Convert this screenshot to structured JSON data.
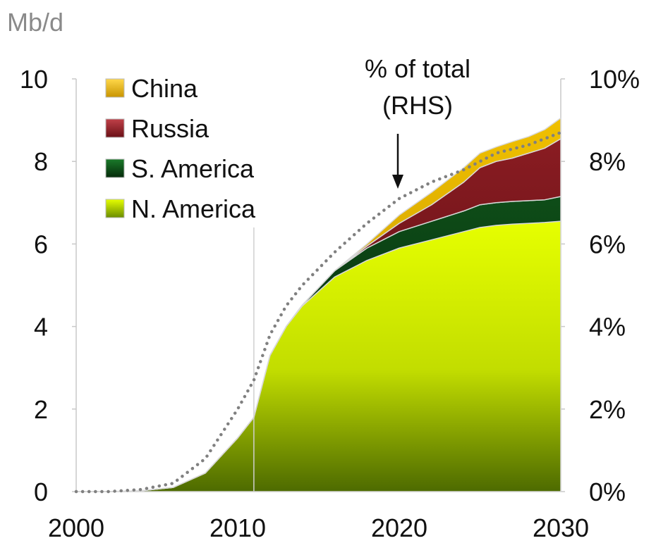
{
  "chart_data": {
    "type": "area",
    "stacked": true,
    "y_unit_label": "Mb/d",
    "x_ticks": [
      "2000",
      "2010",
      "2020",
      "2030"
    ],
    "y_ticks_left": [
      "0",
      "2",
      "4",
      "6",
      "8",
      "10"
    ],
    "y_ticks_right": [
      "0%",
      "2%",
      "4%",
      "6%",
      "8%",
      "10%"
    ],
    "xlim": [
      2000,
      2030
    ],
    "ylim": [
      0,
      10
    ],
    "ylim_right": [
      0,
      10
    ],
    "legend_placement": "top-left",
    "x": [
      2000,
      2002,
      2004,
      2006,
      2008,
      2010,
      2011,
      2012,
      2013,
      2014,
      2016,
      2018,
      2020,
      2022,
      2024,
      2025,
      2026,
      2027,
      2028,
      2029,
      2030
    ],
    "series": [
      {
        "name": "N. America",
        "color": "#c8e600",
        "values": [
          0,
          0,
          0.02,
          0.1,
          0.45,
          1.3,
          1.8,
          3.3,
          4.0,
          4.5,
          5.2,
          5.6,
          5.9,
          6.1,
          6.3,
          6.4,
          6.45,
          6.48,
          6.5,
          6.52,
          6.55
        ]
      },
      {
        "name": "S. America",
        "color": "#0a3a10",
        "values": [
          0,
          0,
          0,
          0,
          0,
          0,
          0,
          0,
          0,
          0.02,
          0.15,
          0.3,
          0.4,
          0.45,
          0.5,
          0.55,
          0.55,
          0.55,
          0.55,
          0.55,
          0.6
        ]
      },
      {
        "name": "Russia",
        "color": "#6e1418",
        "values": [
          0,
          0,
          0,
          0,
          0,
          0,
          0,
          0,
          0,
          0,
          0,
          0.05,
          0.2,
          0.4,
          0.7,
          0.9,
          1.0,
          1.05,
          1.15,
          1.25,
          1.4
        ]
      },
      {
        "name": "China",
        "color": "#d9a800",
        "values": [
          0,
          0,
          0,
          0,
          0,
          0,
          0,
          0,
          0,
          0,
          0,
          0.05,
          0.2,
          0.3,
          0.35,
          0.35,
          0.35,
          0.4,
          0.4,
          0.45,
          0.5
        ]
      }
    ],
    "rhs_series": {
      "name": "% of total (RHS)",
      "style": "dotted",
      "color": "#808080",
      "values_percent": [
        0,
        0,
        0.05,
        0.2,
        0.8,
        2.0,
        2.7,
        3.8,
        4.5,
        5.0,
        5.8,
        6.5,
        7.1,
        7.5,
        7.8,
        8.0,
        8.2,
        8.3,
        8.4,
        8.55,
        8.7
      ]
    },
    "annotation": {
      "line1": "% of total",
      "line2": "(RHS)",
      "points_to_year": 2020
    },
    "reference_line_year": 2011
  }
}
